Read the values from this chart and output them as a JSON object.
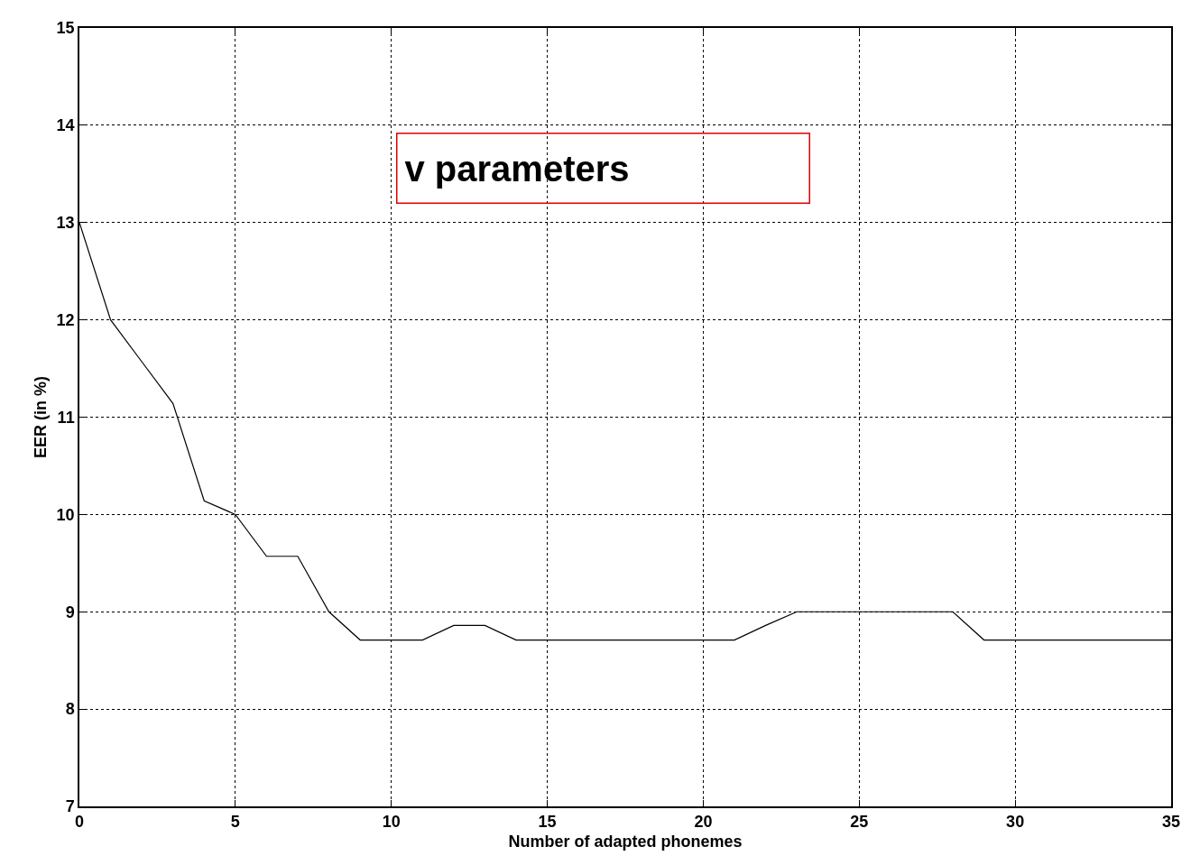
{
  "chart_data": {
    "type": "line",
    "xlabel": "Number of adapted phonemes",
    "ylabel": "EER (in %)",
    "annotations": [
      "v parameters"
    ],
    "x": [
      0,
      1,
      2,
      3,
      4,
      5,
      6,
      7,
      8,
      9,
      10,
      11,
      12,
      13,
      14,
      15,
      16,
      17,
      18,
      19,
      20,
      21,
      22,
      23,
      24,
      25,
      26,
      27,
      28,
      29,
      30,
      31,
      32,
      33,
      34,
      35
    ],
    "series": [
      {
        "color": "#000000",
        "values": [
          13,
          12,
          11.57,
          11.14,
          10.14,
          10,
          9.57,
          9.57,
          9,
          8.71,
          8.71,
          8.71,
          8.86,
          8.86,
          8.71,
          8.71,
          8.71,
          8.71,
          8.71,
          8.71,
          8.71,
          8.71,
          8.86,
          9,
          9,
          9,
          9,
          9,
          9,
          8.71,
          8.71,
          8.71,
          8.71,
          8.71,
          8.71,
          8.71
        ]
      }
    ],
    "xlim": [
      0,
      35
    ],
    "xticks": [
      0,
      5,
      10,
      15,
      20,
      25,
      30,
      35
    ],
    "ylim": [
      7,
      15
    ],
    "yticks": [
      7,
      8,
      9,
      10,
      11,
      12,
      13,
      14,
      15
    ],
    "grid": true,
    "marker": "none",
    "line_style": "solid"
  }
}
